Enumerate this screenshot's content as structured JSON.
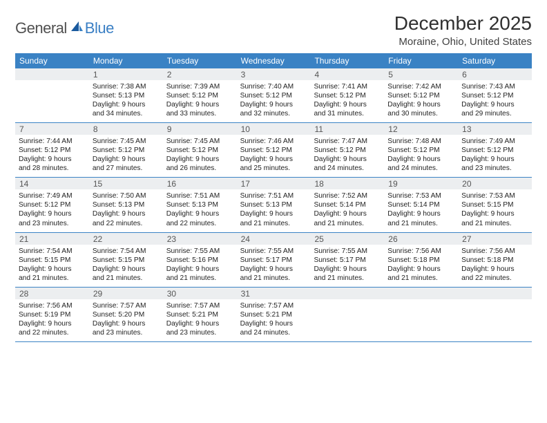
{
  "logo": {
    "text1": "General",
    "text2": "Blue"
  },
  "header": {
    "month_title": "December 2025",
    "location": "Moraine, Ohio, United States"
  },
  "colors": {
    "header_bg": "#3a82c4",
    "daynum_bg": "#eceef0",
    "logo_blue": "#3a7fc4",
    "rule": "#3a82c4"
  },
  "day_headers": [
    "Sunday",
    "Monday",
    "Tuesday",
    "Wednesday",
    "Thursday",
    "Friday",
    "Saturday"
  ],
  "weeks": [
    [
      {
        "n": "",
        "lines": []
      },
      {
        "n": "1",
        "lines": [
          "Sunrise: 7:38 AM",
          "Sunset: 5:13 PM",
          "Daylight: 9 hours",
          "and 34 minutes."
        ]
      },
      {
        "n": "2",
        "lines": [
          "Sunrise: 7:39 AM",
          "Sunset: 5:12 PM",
          "Daylight: 9 hours",
          "and 33 minutes."
        ]
      },
      {
        "n": "3",
        "lines": [
          "Sunrise: 7:40 AM",
          "Sunset: 5:12 PM",
          "Daylight: 9 hours",
          "and 32 minutes."
        ]
      },
      {
        "n": "4",
        "lines": [
          "Sunrise: 7:41 AM",
          "Sunset: 5:12 PM",
          "Daylight: 9 hours",
          "and 31 minutes."
        ]
      },
      {
        "n": "5",
        "lines": [
          "Sunrise: 7:42 AM",
          "Sunset: 5:12 PM",
          "Daylight: 9 hours",
          "and 30 minutes."
        ]
      },
      {
        "n": "6",
        "lines": [
          "Sunrise: 7:43 AM",
          "Sunset: 5:12 PM",
          "Daylight: 9 hours",
          "and 29 minutes."
        ]
      }
    ],
    [
      {
        "n": "7",
        "lines": [
          "Sunrise: 7:44 AM",
          "Sunset: 5:12 PM",
          "Daylight: 9 hours",
          "and 28 minutes."
        ]
      },
      {
        "n": "8",
        "lines": [
          "Sunrise: 7:45 AM",
          "Sunset: 5:12 PM",
          "Daylight: 9 hours",
          "and 27 minutes."
        ]
      },
      {
        "n": "9",
        "lines": [
          "Sunrise: 7:45 AM",
          "Sunset: 5:12 PM",
          "Daylight: 9 hours",
          "and 26 minutes."
        ]
      },
      {
        "n": "10",
        "lines": [
          "Sunrise: 7:46 AM",
          "Sunset: 5:12 PM",
          "Daylight: 9 hours",
          "and 25 minutes."
        ]
      },
      {
        "n": "11",
        "lines": [
          "Sunrise: 7:47 AM",
          "Sunset: 5:12 PM",
          "Daylight: 9 hours",
          "and 24 minutes."
        ]
      },
      {
        "n": "12",
        "lines": [
          "Sunrise: 7:48 AM",
          "Sunset: 5:12 PM",
          "Daylight: 9 hours",
          "and 24 minutes."
        ]
      },
      {
        "n": "13",
        "lines": [
          "Sunrise: 7:49 AM",
          "Sunset: 5:12 PM",
          "Daylight: 9 hours",
          "and 23 minutes."
        ]
      }
    ],
    [
      {
        "n": "14",
        "lines": [
          "Sunrise: 7:49 AM",
          "Sunset: 5:12 PM",
          "Daylight: 9 hours",
          "and 23 minutes."
        ]
      },
      {
        "n": "15",
        "lines": [
          "Sunrise: 7:50 AM",
          "Sunset: 5:13 PM",
          "Daylight: 9 hours",
          "and 22 minutes."
        ]
      },
      {
        "n": "16",
        "lines": [
          "Sunrise: 7:51 AM",
          "Sunset: 5:13 PM",
          "Daylight: 9 hours",
          "and 22 minutes."
        ]
      },
      {
        "n": "17",
        "lines": [
          "Sunrise: 7:51 AM",
          "Sunset: 5:13 PM",
          "Daylight: 9 hours",
          "and 21 minutes."
        ]
      },
      {
        "n": "18",
        "lines": [
          "Sunrise: 7:52 AM",
          "Sunset: 5:14 PM",
          "Daylight: 9 hours",
          "and 21 minutes."
        ]
      },
      {
        "n": "19",
        "lines": [
          "Sunrise: 7:53 AM",
          "Sunset: 5:14 PM",
          "Daylight: 9 hours",
          "and 21 minutes."
        ]
      },
      {
        "n": "20",
        "lines": [
          "Sunrise: 7:53 AM",
          "Sunset: 5:15 PM",
          "Daylight: 9 hours",
          "and 21 minutes."
        ]
      }
    ],
    [
      {
        "n": "21",
        "lines": [
          "Sunrise: 7:54 AM",
          "Sunset: 5:15 PM",
          "Daylight: 9 hours",
          "and 21 minutes."
        ]
      },
      {
        "n": "22",
        "lines": [
          "Sunrise: 7:54 AM",
          "Sunset: 5:15 PM",
          "Daylight: 9 hours",
          "and 21 minutes."
        ]
      },
      {
        "n": "23",
        "lines": [
          "Sunrise: 7:55 AM",
          "Sunset: 5:16 PM",
          "Daylight: 9 hours",
          "and 21 minutes."
        ]
      },
      {
        "n": "24",
        "lines": [
          "Sunrise: 7:55 AM",
          "Sunset: 5:17 PM",
          "Daylight: 9 hours",
          "and 21 minutes."
        ]
      },
      {
        "n": "25",
        "lines": [
          "Sunrise: 7:55 AM",
          "Sunset: 5:17 PM",
          "Daylight: 9 hours",
          "and 21 minutes."
        ]
      },
      {
        "n": "26",
        "lines": [
          "Sunrise: 7:56 AM",
          "Sunset: 5:18 PM",
          "Daylight: 9 hours",
          "and 21 minutes."
        ]
      },
      {
        "n": "27",
        "lines": [
          "Sunrise: 7:56 AM",
          "Sunset: 5:18 PM",
          "Daylight: 9 hours",
          "and 22 minutes."
        ]
      }
    ],
    [
      {
        "n": "28",
        "lines": [
          "Sunrise: 7:56 AM",
          "Sunset: 5:19 PM",
          "Daylight: 9 hours",
          "and 22 minutes."
        ]
      },
      {
        "n": "29",
        "lines": [
          "Sunrise: 7:57 AM",
          "Sunset: 5:20 PM",
          "Daylight: 9 hours",
          "and 23 minutes."
        ]
      },
      {
        "n": "30",
        "lines": [
          "Sunrise: 7:57 AM",
          "Sunset: 5:21 PM",
          "Daylight: 9 hours",
          "and 23 minutes."
        ]
      },
      {
        "n": "31",
        "lines": [
          "Sunrise: 7:57 AM",
          "Sunset: 5:21 PM",
          "Daylight: 9 hours",
          "and 24 minutes."
        ]
      },
      {
        "n": "",
        "lines": []
      },
      {
        "n": "",
        "lines": []
      },
      {
        "n": "",
        "lines": []
      }
    ]
  ]
}
